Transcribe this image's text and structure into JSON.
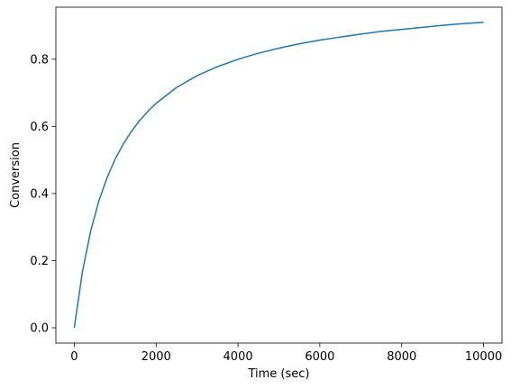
{
  "chart_data": {
    "type": "line",
    "title": "",
    "xlabel": "Time (sec)",
    "ylabel": "Conversion",
    "xlim": [
      -450,
      10450
    ],
    "ylim": [
      -0.0455,
      0.955
    ],
    "xticks": [
      0,
      2000,
      4000,
      6000,
      8000,
      10000
    ],
    "xtick_labels": [
      "0",
      "2000",
      "4000",
      "6000",
      "8000",
      "10000"
    ],
    "yticks": [
      0.0,
      0.2,
      0.4,
      0.6,
      0.8
    ],
    "ytick_labels": [
      "0.0",
      "0.2",
      "0.4",
      "0.6",
      "0.8"
    ],
    "grid": false,
    "legend": null,
    "series": [
      {
        "color": "#1f77b4",
        "x": [
          0,
          200,
          400,
          600,
          800,
          1000,
          1200,
          1400,
          1600,
          1800,
          2000,
          2500,
          3000,
          3500,
          4000,
          4500,
          5000,
          5500,
          6000,
          6500,
          7000,
          7500,
          8000,
          8500,
          9000,
          9500,
          10000
        ],
        "y": [
          0.0,
          0.168,
          0.288,
          0.378,
          0.447,
          0.503,
          0.548,
          0.586,
          0.618,
          0.645,
          0.669,
          0.716,
          0.751,
          0.778,
          0.8,
          0.818,
          0.833,
          0.846,
          0.857,
          0.866,
          0.875,
          0.883,
          0.889,
          0.895,
          0.901,
          0.906,
          0.91
        ]
      }
    ]
  }
}
